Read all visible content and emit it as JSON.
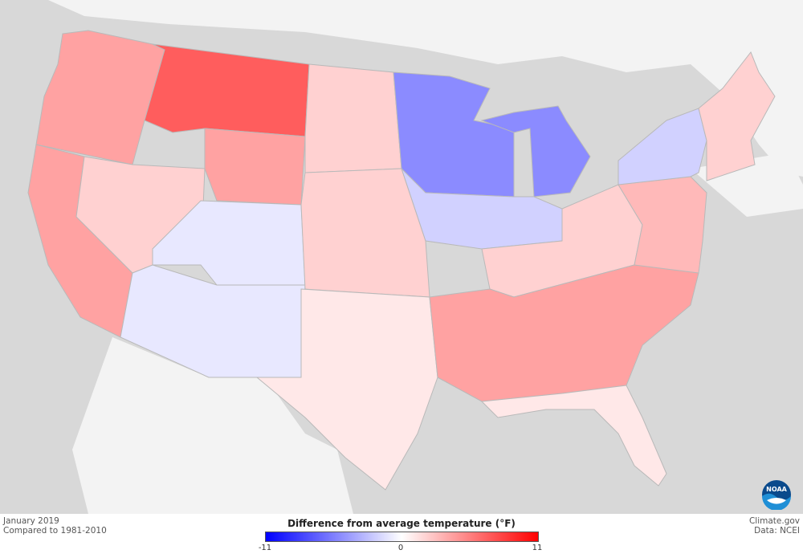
{
  "map": {
    "caption_date": "January 2019",
    "caption_baseline": "Compared to 1981-2010",
    "credit_site": "Climate.gov",
    "credit_data": "Data: NCEI"
  },
  "legend": {
    "title": "Difference from average temperature (°F)",
    "min": "-11",
    "mid": "0",
    "max": "11",
    "colors": {
      "cold": "#0000ff",
      "neutral": "#ffffff",
      "warm": "#ff0000"
    }
  },
  "logo": {
    "text": "NOAA",
    "icon": "noaa-logo-icon"
  },
  "regions": [
    {
      "name": "pacific-northwest",
      "anomaly": 4
    },
    {
      "name": "california",
      "anomaly": 4
    },
    {
      "name": "great-basin",
      "anomaly": 2
    },
    {
      "name": "montana",
      "anomaly": 7
    },
    {
      "name": "wyoming",
      "anomaly": 4
    },
    {
      "name": "utah-colorado",
      "anomaly": -1
    },
    {
      "name": "southwest",
      "anomaly": -1
    },
    {
      "name": "northern-plains",
      "anomaly": 2
    },
    {
      "name": "central-plains",
      "anomaly": 2
    },
    {
      "name": "texas",
      "anomaly": 1
    },
    {
      "name": "upper-midwest",
      "anomaly": -5
    },
    {
      "name": "michigan",
      "anomaly": -5
    },
    {
      "name": "midwest-south",
      "anomaly": -2
    },
    {
      "name": "ohio-valley",
      "anomaly": 2
    },
    {
      "name": "southeast",
      "anomaly": 4
    },
    {
      "name": "florida",
      "anomaly": 1
    },
    {
      "name": "mid-atlantic",
      "anomaly": 3
    },
    {
      "name": "new-york",
      "anomaly": -2
    },
    {
      "name": "new-england",
      "anomaly": 2
    }
  ]
}
